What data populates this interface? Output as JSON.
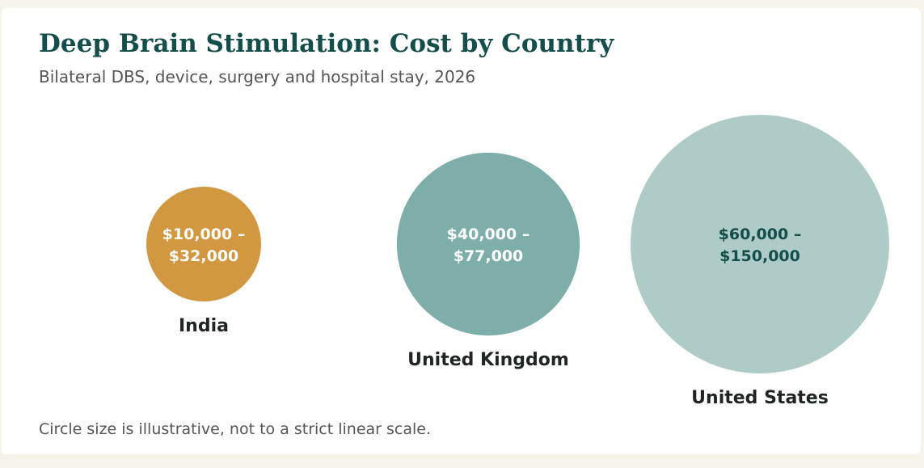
{
  "header": {
    "title": "Deep Brain Stimulation: Cost by Country",
    "subtitle": "Bilateral DBS, device, surgery and hospital stay, 2026"
  },
  "footnote": "Circle size is illustrative, not to a strict linear scale.",
  "chart_data": {
    "type": "bubble",
    "title": "Deep Brain Stimulation: Cost by Country",
    "subtitle": "Bilateral DBS, device, surgery and hospital stay, 2026",
    "unit": "USD",
    "series": [
      {
        "name": "India",
        "range_label_line1": "$10,000 –",
        "range_label_line2": "$32,000",
        "min": 10000,
        "max": 32000,
        "color": "#d29741",
        "text_color": "#ffffff"
      },
      {
        "name": "United Kingdom",
        "range_label_line1": "$40,000 –",
        "range_label_line2": "$77,000",
        "min": 40000,
        "max": 77000,
        "color": "#7eaeaa",
        "text_color": "#ffffff"
      },
      {
        "name": "United States",
        "range_label_line1": "$60,000 –",
        "range_label_line2": "$150,000",
        "min": 60000,
        "max": 150000,
        "color": "#aecbc8",
        "text_color": "#134e4a"
      }
    ]
  }
}
